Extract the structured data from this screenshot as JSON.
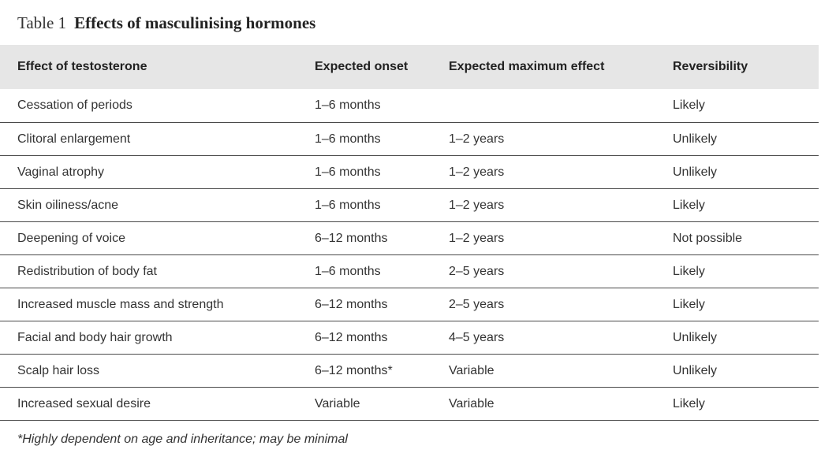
{
  "caption": {
    "label": "Table 1",
    "title": "Effects of masculinising hormones"
  },
  "table": {
    "headers": [
      "Effect of testosterone",
      "Expected onset",
      "Expected maximum effect",
      "Reversibility"
    ],
    "rows": [
      [
        "Cessation of periods",
        "1–6 months",
        "",
        "Likely"
      ],
      [
        "Clitoral enlargement",
        "1–6 months",
        "1–2 years",
        "Unlikely"
      ],
      [
        "Vaginal atrophy",
        "1–6 months",
        "1–2 years",
        "Unlikely"
      ],
      [
        "Skin oiliness/acne",
        "1–6 months",
        "1–2 years",
        "Likely"
      ],
      [
        "Deepening of voice",
        "6–12 months",
        "1–2 years",
        "Not possible"
      ],
      [
        "Redistribution of body fat",
        "1–6 months",
        "2–5 years",
        "Likely"
      ],
      [
        "Increased muscle mass and strength",
        "6–12 months",
        "2–5 years",
        "Likely"
      ],
      [
        "Facial and body hair growth",
        "6–12 months",
        "4–5 years",
        "Unlikely"
      ],
      [
        "Scalp hair loss",
        "6–12 months*",
        "Variable",
        "Unlikely"
      ],
      [
        "Increased sexual desire",
        "Variable",
        "Variable",
        "Likely"
      ]
    ]
  },
  "footnote": "*Highly dependent on age and inheritance; may be minimal"
}
